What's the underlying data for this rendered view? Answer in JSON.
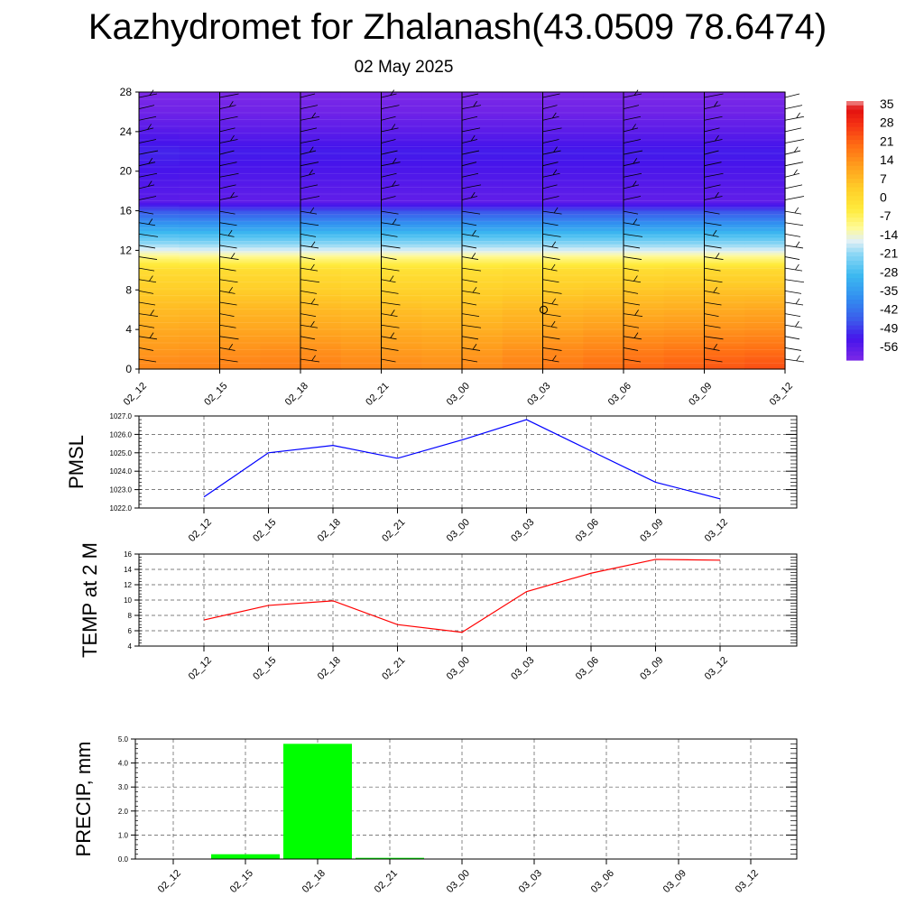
{
  "title": "Kazhydromet for Zhalanash(43.0509 78.6474)",
  "subtitle": "02 May 2025",
  "colors": {
    "pmsl_line": "#0000ff",
    "temp_line": "#ff0000",
    "precip_bar": "#00ff00"
  },
  "chart_data": [
    {
      "type": "heatmap",
      "name": "vertical-profile",
      "categories": [
        "02_12",
        "02_15",
        "02_18",
        "02_21",
        "03_00",
        "03_03",
        "03_06",
        "03_09",
        "03_12"
      ],
      "y_ticks": [
        0,
        4,
        8,
        12,
        16,
        20,
        24,
        28
      ],
      "ylim": [
        0,
        28
      ],
      "colorbar": {
        "labels": [
          "35",
          "28",
          "21",
          "14",
          "7",
          "0",
          "-7",
          "-14",
          "-21",
          "-28",
          "-35",
          "-42",
          "-49",
          "-56"
        ],
        "range": [
          -60,
          38
        ]
      },
      "rows": [
        {
          "level": 0,
          "values": [
            17,
            18,
            19,
            17,
            16,
            19,
            22,
            24,
            26
          ]
        },
        {
          "level": 2,
          "values": [
            14,
            15,
            16,
            14,
            13,
            16,
            18,
            20,
            21
          ]
        },
        {
          "level": 4,
          "values": [
            11,
            12,
            12,
            11,
            10,
            12,
            14,
            15,
            16
          ]
        },
        {
          "level": 6,
          "values": [
            8,
            9,
            9,
            8,
            7,
            9,
            10,
            11,
            12
          ]
        },
        {
          "level": 8,
          "values": [
            5,
            5,
            5,
            4,
            4,
            5,
            6,
            7,
            7
          ]
        },
        {
          "level": 10,
          "values": [
            1,
            1,
            1,
            0,
            0,
            1,
            1,
            2,
            2
          ]
        },
        {
          "level": 11,
          "values": [
            -5,
            -6,
            -6,
            -6,
            -6,
            -6,
            -6,
            -6,
            -6
          ]
        },
        {
          "level": 12,
          "values": [
            -14,
            -15,
            -15,
            -15,
            -15,
            -15,
            -15,
            -15,
            -15
          ]
        },
        {
          "level": 14,
          "values": [
            -29,
            -30,
            -30,
            -30,
            -30,
            -30,
            -30,
            -30,
            -30
          ]
        },
        {
          "level": 16,
          "values": [
            -45,
            -46,
            -46,
            -46,
            -46,
            -46,
            -46,
            -46,
            -46
          ]
        },
        {
          "level": 17,
          "values": [
            -55,
            -56,
            -56,
            -56,
            -56,
            -56,
            -56,
            -56,
            -56
          ]
        },
        {
          "level": 18,
          "values": [
            -54,
            -55,
            -55,
            -55,
            -55,
            -55,
            -55,
            -55,
            -55
          ]
        },
        {
          "level": 20,
          "values": [
            -52,
            -53,
            -53,
            -53,
            -53,
            -53,
            -53,
            -53,
            -53
          ]
        },
        {
          "level": 22,
          "values": [
            -50,
            -51,
            -51,
            -51,
            -51,
            -51,
            -51,
            -51,
            -51
          ]
        },
        {
          "level": 24,
          "values": [
            -54,
            -55,
            -55,
            -55,
            -55,
            -55,
            -55,
            -55,
            -55
          ]
        },
        {
          "level": 26,
          "values": [
            -58,
            -58,
            -58,
            -58,
            -58,
            -58,
            -58,
            -58,
            -58
          ]
        },
        {
          "level": 28,
          "values": [
            -60,
            -60,
            -60,
            -60,
            -60,
            -60,
            -60,
            -60,
            -60
          ]
        }
      ]
    },
    {
      "type": "line",
      "name": "pmsl",
      "ylabel": "PMSL",
      "categories": [
        "02_12",
        "02_15",
        "02_18",
        "02_21",
        "03_00",
        "03_03",
        "03_06",
        "03_09",
        "03_12"
      ],
      "values": [
        1022.6,
        1025.0,
        1025.4,
        1024.7,
        1025.7,
        1026.8,
        1025.1,
        1023.4,
        1022.5
      ],
      "ylim": [
        1022.0,
        1027.0
      ],
      "y_ticks": [
        "1022.0",
        "1023.0",
        "1024.0",
        "1025.0",
        "1026.0",
        "1027.0"
      ],
      "grid": true
    },
    {
      "type": "line",
      "name": "temp",
      "ylabel": "TEMP at 2 M",
      "categories": [
        "02_12",
        "02_15",
        "02_18",
        "02_21",
        "03_00",
        "03_03",
        "03_06",
        "03_09",
        "03_12"
      ],
      "values": [
        7.4,
        9.3,
        9.9,
        6.8,
        5.8,
        11.1,
        13.5,
        15.3,
        15.2
      ],
      "ylim": [
        4,
        16
      ],
      "y_ticks": [
        "4",
        "6",
        "8",
        "10",
        "12",
        "14",
        "16"
      ],
      "grid": true
    },
    {
      "type": "bar",
      "name": "precip",
      "ylabel": "PRECIP, mm",
      "categories": [
        "02_12",
        "02_15",
        "02_18",
        "02_21",
        "03_00",
        "03_03",
        "03_06",
        "03_09",
        "03_12"
      ],
      "values": [
        0.0,
        0.2,
        4.8,
        0.05,
        0.0,
        0.0,
        0.0,
        0.0,
        0.0
      ],
      "ylim": [
        0.0,
        5.0
      ],
      "y_ticks": [
        "0.0",
        "1.0",
        "2.0",
        "3.0",
        "4.0",
        "5.0"
      ],
      "grid": true
    }
  ]
}
